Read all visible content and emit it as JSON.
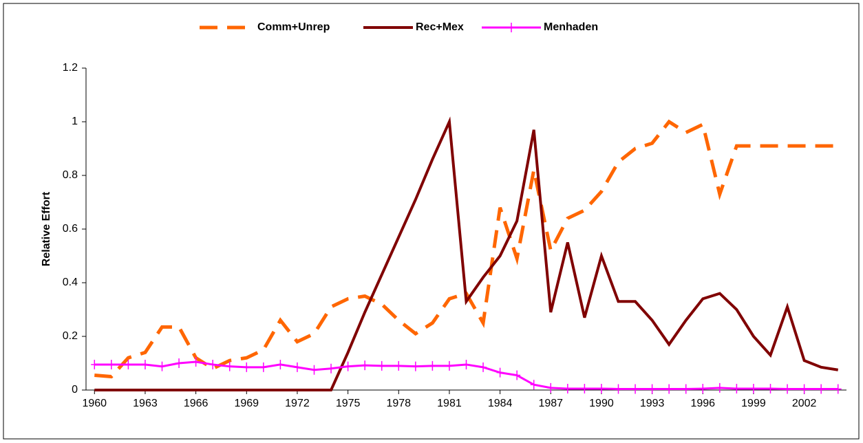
{
  "chart_data": {
    "type": "line",
    "y_label": "Relative Effort",
    "x": [
      1960,
      1961,
      1962,
      1963,
      1964,
      1965,
      1966,
      1967,
      1968,
      1969,
      1970,
      1971,
      1972,
      1973,
      1974,
      1975,
      1976,
      1977,
      1978,
      1979,
      1980,
      1981,
      1982,
      1983,
      1984,
      1985,
      1986,
      1987,
      1988,
      1989,
      1990,
      1991,
      1992,
      1993,
      1994,
      1995,
      1996,
      1997,
      1998,
      1999,
      2000,
      2001,
      2002,
      2003,
      2004
    ],
    "xlim": [
      1959.5,
      2004.5
    ],
    "xticks": [
      1960,
      1963,
      1966,
      1969,
      1972,
      1975,
      1978,
      1981,
      1984,
      1987,
      1990,
      1993,
      1996,
      1999,
      2002
    ],
    "ylim": [
      0,
      1.2
    ],
    "yticks": [
      0,
      0.2,
      0.4,
      0.6,
      0.8,
      1,
      1.2
    ],
    "grid": false,
    "legend": "top",
    "series": [
      {
        "name": "Comm+Unrep",
        "color": "#ff6600",
        "style": "dashed",
        "marker": "none",
        "values": [
          0.055,
          0.05,
          0.12,
          0.14,
          0.235,
          0.235,
          0.12,
          0.08,
          0.11,
          0.12,
          0.15,
          0.26,
          0.18,
          0.21,
          0.31,
          0.34,
          0.35,
          0.32,
          0.26,
          0.21,
          0.25,
          0.34,
          0.36,
          0.25,
          0.68,
          0.49,
          0.82,
          0.52,
          0.64,
          0.67,
          0.74,
          0.85,
          0.9,
          0.92,
          1.0,
          0.96,
          0.99,
          0.73,
          0.91,
          0.91,
          0.91,
          0.91,
          0.91,
          0.91,
          0.91
        ]
      },
      {
        "name": "Rec+Mex",
        "color": "#800000",
        "style": "solid",
        "marker": "none",
        "values": [
          0,
          0,
          0,
          0,
          0,
          0,
          0,
          0,
          0,
          0,
          0,
          0,
          0,
          0,
          0,
          0.14,
          0.29,
          0.43,
          0.57,
          0.71,
          0.86,
          1.0,
          0.33,
          0.42,
          0.5,
          0.63,
          0.97,
          0.29,
          0.55,
          0.27,
          0.5,
          0.33,
          0.33,
          0.26,
          0.17,
          0.26,
          0.34,
          0.36,
          0.3,
          0.2,
          0.13,
          0.31,
          0.11,
          0.085,
          0.075
        ]
      },
      {
        "name": "Menhaden",
        "color": "#ff00ff",
        "style": "solid",
        "marker": "plus",
        "values": [
          0.095,
          0.095,
          0.095,
          0.095,
          0.088,
          0.1,
          0.105,
          0.095,
          0.088,
          0.085,
          0.085,
          0.095,
          0.085,
          0.075,
          0.08,
          0.088,
          0.092,
          0.09,
          0.09,
          0.088,
          0.09,
          0.09,
          0.095,
          0.085,
          0.065,
          0.055,
          0.02,
          0.008,
          0.005,
          0.005,
          0.005,
          0.004,
          0.004,
          0.004,
          0.004,
          0.004,
          0.005,
          0.008,
          0.005,
          0.005,
          0.005,
          0.004,
          0.004,
          0.004,
          0.004
        ]
      }
    ]
  }
}
